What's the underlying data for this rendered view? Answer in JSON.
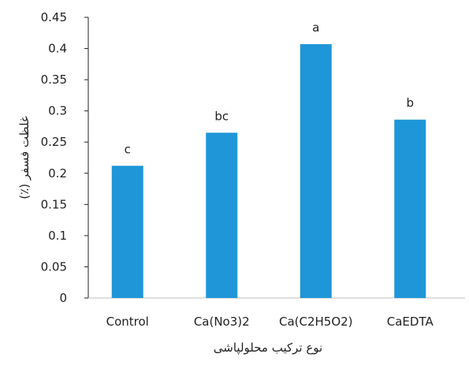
{
  "chart_data": {
    "type": "bar",
    "categories": [
      "Control",
      "Ca(No3)2",
      "Ca(C2H5O2)",
      "CaEDTA"
    ],
    "values": [
      0.212,
      0.265,
      0.407,
      0.286
    ],
    "data_labels": [
      "c",
      "bc",
      "a",
      "b"
    ],
    "xlabel": "نوع ترکیب محلولپاشی",
    "ylabel": "غلظت فسفر (٪)",
    "ylim": [
      0,
      0.45
    ],
    "yticks": [
      "0",
      "0.05",
      "0.1",
      "0.15",
      "0.2",
      "0.25",
      "0.3",
      "0.35",
      "0.4",
      "0.45"
    ],
    "grid": false,
    "legend": "none",
    "bar_color": "#1f96d8"
  }
}
